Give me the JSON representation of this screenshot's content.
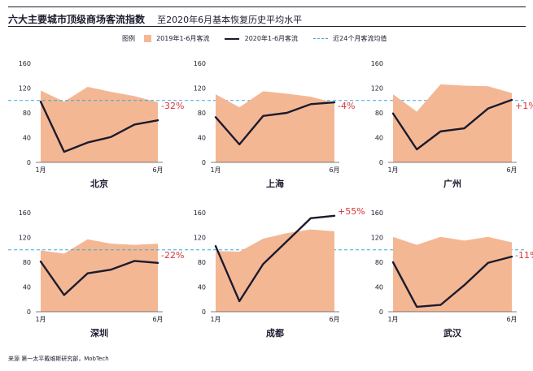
{
  "header": {
    "title": "六大主要城市顶级商场客流指数",
    "subtitle": "至2020年6月基本恢复历史平均水平"
  },
  "legend": {
    "label": "图例",
    "area_label": "2019年1-6月客流",
    "line_label": "2020年1-6月客流",
    "ref_label": "近24个月客流均值"
  },
  "colors": {
    "area": "#f4b794",
    "line": "#1b1b2e",
    "reference": "#3aa9d6",
    "change_label": "#d8353a",
    "axis": "#555555",
    "text": "#1b1b2e"
  },
  "chart_data": [
    {
      "type": "area+line",
      "city": "北京",
      "x_start_label": "1月",
      "x_end_label": "6月",
      "ylim": [
        0,
        160
      ],
      "yticks": [
        "0",
        "40",
        "80",
        "120",
        "160"
      ],
      "reference": 100,
      "series": [
        {
          "name": "2019年1-6月客流",
          "kind": "area",
          "values": [
            116,
            98,
            122,
            114,
            107,
            97
          ]
        },
        {
          "name": "2020年1-6月客流",
          "kind": "line",
          "values": [
            98,
            17,
            32,
            41,
            61,
            68
          ]
        }
      ],
      "change_label": "-32%"
    },
    {
      "type": "area+line",
      "city": "上海",
      "x_start_label": "1月",
      "x_end_label": "6月",
      "ylim": [
        0,
        160
      ],
      "yticks": [
        "0",
        "40",
        "80",
        "120",
        "160"
      ],
      "reference": 100,
      "series": [
        {
          "name": "2019年1-6月客流",
          "kind": "area",
          "values": [
            110,
            89,
            115,
            111,
            106,
            96
          ]
        },
        {
          "name": "2020年1-6月客流",
          "kind": "line",
          "values": [
            73,
            29,
            75,
            80,
            94,
            97
          ]
        }
      ],
      "change_label": "-4%"
    },
    {
      "type": "area+line",
      "city": "广州",
      "x_start_label": "1月",
      "x_end_label": "6月",
      "ylim": [
        0,
        160
      ],
      "yticks": [
        "0",
        "40",
        "80",
        "120",
        "160"
      ],
      "reference": 100,
      "series": [
        {
          "name": "2019年1-6月客流",
          "kind": "area",
          "values": [
            110,
            82,
            126,
            124,
            123,
            112
          ]
        },
        {
          "name": "2020年1-6月客流",
          "kind": "line",
          "values": [
            79,
            21,
            50,
            55,
            87,
            101
          ]
        }
      ],
      "change_label": "+1%"
    },
    {
      "type": "area+line",
      "city": "深圳",
      "x_start_label": "1月",
      "x_end_label": "6月",
      "ylim": [
        0,
        160
      ],
      "yticks": [
        "0",
        "40",
        "80",
        "120",
        "160"
      ],
      "reference": 100,
      "series": [
        {
          "name": "2019年1-6月客流",
          "kind": "area",
          "values": [
            99,
            94,
            117,
            110,
            108,
            110
          ]
        },
        {
          "name": "2020年1-6月客流",
          "kind": "line",
          "values": [
            81,
            27,
            62,
            68,
            82,
            79
          ]
        }
      ],
      "change_label": "-22%"
    },
    {
      "type": "area+line",
      "city": "成都",
      "x_start_label": "1月",
      "x_end_label": "6月",
      "ylim": [
        0,
        160
      ],
      "yticks": [
        "0",
        "40",
        "80",
        "120",
        "160"
      ],
      "reference": 100,
      "series": [
        {
          "name": "2019年1-6月客流",
          "kind": "area",
          "values": [
            98,
            97,
            118,
            127,
            133,
            130
          ]
        },
        {
          "name": "2020年1-6月客流",
          "kind": "line",
          "values": [
            106,
            17,
            77,
            114,
            151,
            155
          ]
        }
      ],
      "change_label": "+55%"
    },
    {
      "type": "area+line",
      "city": "武汉",
      "x_start_label": "1月",
      "x_end_label": "6月",
      "ylim": [
        0,
        160
      ],
      "yticks": [
        "0",
        "40",
        "80",
        "120",
        "160"
      ],
      "reference": 100,
      "series": [
        {
          "name": "2019年1-6月客流",
          "kind": "area",
          "values": [
            121,
            108,
            121,
            115,
            121,
            112
          ]
        },
        {
          "name": "2020年1-6月客流",
          "kind": "line",
          "values": [
            80,
            8,
            11,
            43,
            79,
            89
          ]
        }
      ],
      "change_label": "-11%"
    }
  ],
  "source": "来源  第一太平戴维斯研究部，MobTech"
}
